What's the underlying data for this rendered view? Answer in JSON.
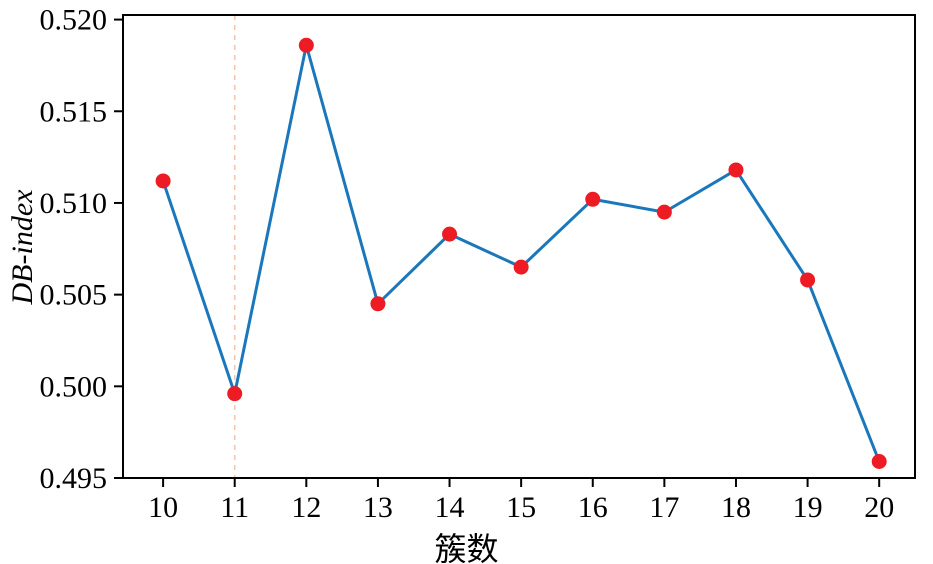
{
  "chart_data": {
    "type": "line",
    "x": [
      10,
      11,
      12,
      13,
      14,
      15,
      16,
      17,
      18,
      19,
      20
    ],
    "series": [
      {
        "name": "DB-index",
        "values": [
          0.5112,
          0.4996,
          0.5186,
          0.5045,
          0.5083,
          0.5065,
          0.5102,
          0.5095,
          0.5118,
          0.5058,
          0.4959
        ]
      }
    ],
    "title": "",
    "xlabel": "簇数",
    "ylabel": "DB-index",
    "xlim": [
      9.44,
      20.5
    ],
    "ylim": [
      0.495,
      0.52025
    ],
    "xticks": [
      10,
      11,
      12,
      13,
      14,
      15,
      16,
      17,
      18,
      19,
      20
    ],
    "xtick_labels": [
      "10",
      "11",
      "12",
      "13",
      "14",
      "15",
      "16",
      "17",
      "18",
      "19",
      "20"
    ],
    "yticks": [
      0.495,
      0.5,
      0.505,
      0.51,
      0.515,
      0.52
    ],
    "ytick_labels": [
      "0.495",
      "0.500",
      "0.505",
      "0.510",
      "0.515",
      "0.520"
    ],
    "grid": false,
    "legend": "none",
    "colors": {
      "line": "#1b77bb",
      "marker": "#ed1c24",
      "axis": "#000000",
      "vline": "#f6c5b1"
    },
    "vline": {
      "x": 11,
      "style": "dashed"
    }
  }
}
